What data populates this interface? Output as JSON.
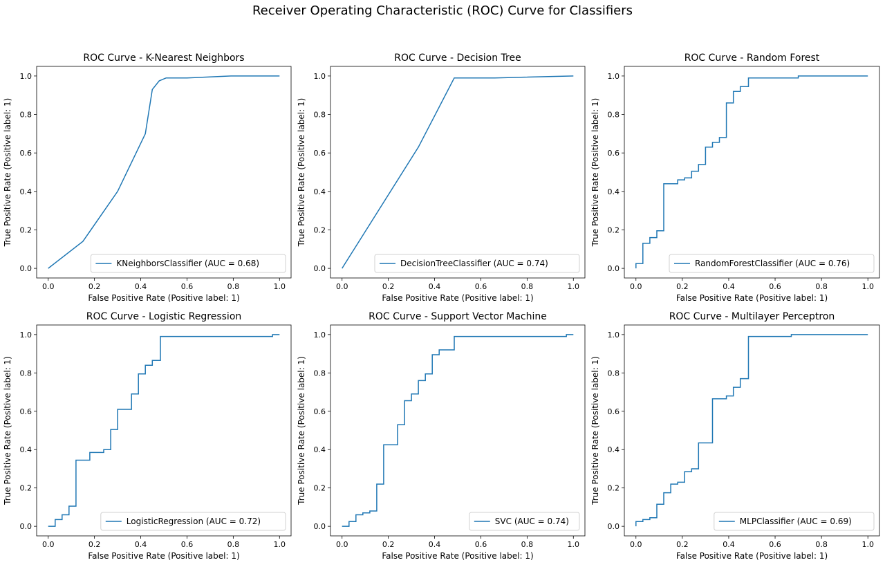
{
  "figure": {
    "suptitle": "Receiver Operating Characteristic (ROC) Curve for Classifiers",
    "line_color": "#1f77b4"
  },
  "chart_data": [
    {
      "type": "line",
      "title": "ROC Curve - K-Nearest Neighbors",
      "xlabel": "False Positive Rate (Positive label: 1)",
      "ylabel": "True Positive Rate (Positive label: 1)",
      "xlim": [
        0,
        1
      ],
      "ylim": [
        0,
        1
      ],
      "xticks": [
        "0.0",
        "0.2",
        "0.4",
        "0.6",
        "0.8",
        "1.0"
      ],
      "yticks": [
        "0.0",
        "0.2",
        "0.4",
        "0.6",
        "0.8",
        "1.0"
      ],
      "legend_position": "lower-right",
      "series": [
        {
          "name": "KNeighborsClassifier (AUC = 0.68)",
          "x": [
            0,
            0.15,
            0.3,
            0.42,
            0.45,
            0.48,
            0.51,
            0.6,
            0.79,
            1.0
          ],
          "y": [
            0,
            0.14,
            0.4,
            0.7,
            0.93,
            0.975,
            0.99,
            0.99,
            1.0,
            1.0
          ]
        }
      ]
    },
    {
      "type": "line",
      "title": "ROC Curve - Decision Tree",
      "xlabel": "False Positive Rate (Positive label: 1)",
      "ylabel": "True Positive Rate (Positive label: 1)",
      "xlim": [
        0,
        1
      ],
      "ylim": [
        0,
        1
      ],
      "xticks": [
        "0.0",
        "0.2",
        "0.4",
        "0.6",
        "0.8",
        "1.0"
      ],
      "yticks": [
        "0.0",
        "0.2",
        "0.4",
        "0.6",
        "0.8",
        "1.0"
      ],
      "legend_position": "lower-right",
      "series": [
        {
          "name": "DecisionTreeClassifier (AUC = 0.74)",
          "x": [
            0,
            0.33,
            0.485,
            0.66,
            1.0
          ],
          "y": [
            0,
            0.63,
            0.99,
            0.99,
            1.0
          ]
        }
      ]
    },
    {
      "type": "line",
      "title": "ROC Curve - Random Forest",
      "xlabel": "False Positive Rate (Positive label: 1)",
      "ylabel": "True Positive Rate (Positive label: 1)",
      "xlim": [
        0,
        1
      ],
      "ylim": [
        0,
        1
      ],
      "xticks": [
        "0.0",
        "0.2",
        "0.4",
        "0.6",
        "0.8",
        "1.0"
      ],
      "yticks": [
        "0.0",
        "0.2",
        "0.4",
        "0.6",
        "0.8",
        "1.0"
      ],
      "legend_position": "lower-right",
      "series": [
        {
          "name": "RandomForestClassifier (AUC = 0.76)",
          "x": [
            0,
            0,
            0.03,
            0.03,
            0.06,
            0.06,
            0.09,
            0.09,
            0.12,
            0.12,
            0.18,
            0.18,
            0.21,
            0.21,
            0.24,
            0.24,
            0.27,
            0.27,
            0.3,
            0.3,
            0.33,
            0.33,
            0.36,
            0.36,
            0.39,
            0.39,
            0.42,
            0.42,
            0.45,
            0.45,
            0.485,
            0.485,
            0.7,
            0.7,
            1.0
          ],
          "y": [
            0,
            0.025,
            0.025,
            0.13,
            0.13,
            0.16,
            0.16,
            0.195,
            0.195,
            0.44,
            0.44,
            0.46,
            0.46,
            0.47,
            0.47,
            0.505,
            0.505,
            0.54,
            0.54,
            0.63,
            0.63,
            0.655,
            0.655,
            0.68,
            0.68,
            0.86,
            0.86,
            0.92,
            0.92,
            0.945,
            0.945,
            0.99,
            0.99,
            1.0,
            1.0
          ]
        }
      ]
    },
    {
      "type": "line",
      "title": "ROC Curve - Logistic Regression",
      "xlabel": "False Positive Rate (Positive label: 1)",
      "ylabel": "True Positive Rate (Positive label: 1)",
      "xlim": [
        0,
        1
      ],
      "ylim": [
        0,
        1
      ],
      "xticks": [
        "0.0",
        "0.2",
        "0.4",
        "0.6",
        "0.8",
        "1.0"
      ],
      "yticks": [
        "0.0",
        "0.2",
        "0.4",
        "0.6",
        "0.8",
        "1.0"
      ],
      "legend_position": "lower-right",
      "series": [
        {
          "name": "LogisticRegression (AUC = 0.72)",
          "x": [
            0,
            0.03,
            0.03,
            0.06,
            0.06,
            0.09,
            0.09,
            0.12,
            0.12,
            0.18,
            0.18,
            0.24,
            0.24,
            0.27,
            0.27,
            0.3,
            0.3,
            0.36,
            0.36,
            0.39,
            0.39,
            0.42,
            0.42,
            0.45,
            0.45,
            0.485,
            0.485,
            0.97,
            0.97,
            1.0
          ],
          "y": [
            0,
            0,
            0.035,
            0.035,
            0.06,
            0.06,
            0.105,
            0.105,
            0.345,
            0.345,
            0.385,
            0.385,
            0.4,
            0.4,
            0.505,
            0.505,
            0.61,
            0.61,
            0.69,
            0.69,
            0.795,
            0.795,
            0.84,
            0.84,
            0.865,
            0.865,
            0.99,
            0.99,
            1.0,
            1.0
          ]
        }
      ]
    },
    {
      "type": "line",
      "title": "ROC Curve - Support Vector Machine",
      "xlabel": "False Positive Rate (Positive label: 1)",
      "ylabel": "True Positive Rate (Positive label: 1)",
      "xlim": [
        0,
        1
      ],
      "ylim": [
        0,
        1
      ],
      "xticks": [
        "0.0",
        "0.2",
        "0.4",
        "0.6",
        "0.8",
        "1.0"
      ],
      "yticks": [
        "0.0",
        "0.2",
        "0.4",
        "0.6",
        "0.8",
        "1.0"
      ],
      "legend_position": "lower-right",
      "series": [
        {
          "name": "SVC (AUC = 0.74)",
          "x": [
            0,
            0.03,
            0.03,
            0.06,
            0.06,
            0.09,
            0.09,
            0.12,
            0.12,
            0.15,
            0.15,
            0.18,
            0.18,
            0.24,
            0.24,
            0.27,
            0.27,
            0.3,
            0.3,
            0.33,
            0.33,
            0.36,
            0.36,
            0.39,
            0.39,
            0.42,
            0.42,
            0.485,
            0.485,
            0.97,
            0.97,
            1.0
          ],
          "y": [
            0,
            0,
            0.025,
            0.025,
            0.06,
            0.06,
            0.07,
            0.07,
            0.08,
            0.08,
            0.22,
            0.22,
            0.425,
            0.425,
            0.53,
            0.53,
            0.655,
            0.655,
            0.69,
            0.69,
            0.76,
            0.76,
            0.795,
            0.795,
            0.895,
            0.895,
            0.92,
            0.92,
            0.99,
            0.99,
            1.0,
            1.0
          ]
        }
      ]
    },
    {
      "type": "line",
      "title": "ROC Curve - Multilayer Perceptron",
      "xlabel": "False Positive Rate (Positive label: 1)",
      "ylabel": "True Positive Rate (Positive label: 1)",
      "xlim": [
        0,
        1
      ],
      "ylim": [
        0,
        1
      ],
      "xticks": [
        "0.0",
        "0.2",
        "0.4",
        "0.6",
        "0.8",
        "1.0"
      ],
      "yticks": [
        "0.0",
        "0.2",
        "0.4",
        "0.6",
        "0.8",
        "1.0"
      ],
      "legend_position": "lower-right",
      "series": [
        {
          "name": "MLPClassifier (AUC = 0.69)",
          "x": [
            0,
            0,
            0.03,
            0.03,
            0.06,
            0.06,
            0.09,
            0.09,
            0.12,
            0.12,
            0.15,
            0.15,
            0.18,
            0.18,
            0.21,
            0.21,
            0.24,
            0.24,
            0.27,
            0.27,
            0.33,
            0.33,
            0.39,
            0.39,
            0.42,
            0.42,
            0.45,
            0.45,
            0.485,
            0.485,
            0.67,
            0.67,
            1.0
          ],
          "y": [
            0,
            0.025,
            0.025,
            0.035,
            0.035,
            0.045,
            0.045,
            0.115,
            0.115,
            0.175,
            0.175,
            0.22,
            0.22,
            0.23,
            0.23,
            0.285,
            0.285,
            0.3,
            0.3,
            0.435,
            0.435,
            0.665,
            0.665,
            0.68,
            0.68,
            0.725,
            0.725,
            0.77,
            0.77,
            0.99,
            0.99,
            1.0,
            1.0
          ]
        }
      ]
    }
  ]
}
